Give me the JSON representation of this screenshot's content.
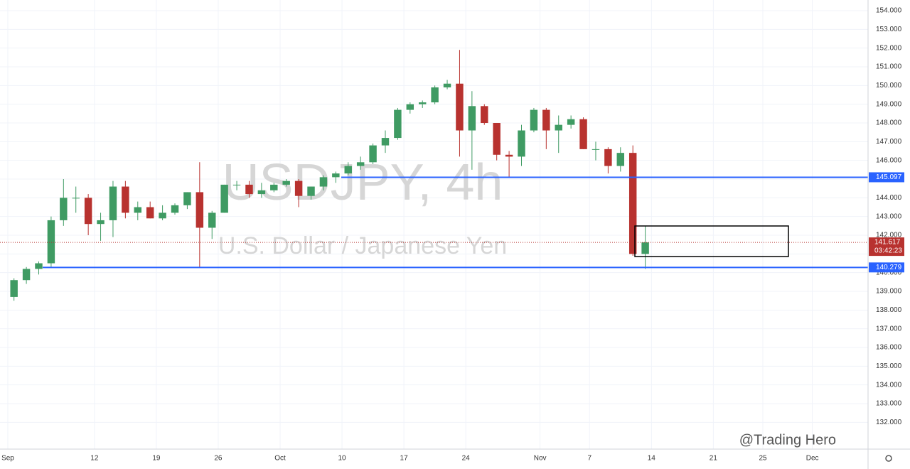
{
  "chart_data": {
    "type": "candlestick",
    "title": "USDJPY, 4h",
    "subtitle": "U.S. Dollar / Japanese Yen",
    "watermark": "@Trading Hero",
    "x": [
      0,
      1,
      2,
      3,
      4,
      5,
      6,
      7,
      8,
      9,
      10,
      11,
      12,
      13,
      14,
      15,
      16,
      17,
      18,
      19,
      20,
      21,
      22,
      23,
      24,
      25,
      26,
      27,
      28,
      29,
      30,
      31,
      32,
      33,
      34,
      35,
      36,
      37,
      38,
      39,
      40,
      41,
      42,
      43,
      44,
      45,
      46,
      47,
      48,
      49,
      50,
      51
    ],
    "open": [
      138.7,
      139.6,
      140.2,
      140.5,
      142.8,
      144.0,
      144.0,
      142.6,
      142.8,
      144.6,
      143.2,
      143.5,
      142.9,
      143.2,
      143.6,
      144.3,
      142.4,
      143.2,
      144.7,
      144.7,
      144.2,
      144.4,
      144.7,
      144.9,
      144.1,
      144.6,
      145.1,
      145.3,
      145.7,
      145.9,
      146.8,
      147.2,
      148.7,
      149.0,
      149.1,
      149.9,
      150.1,
      147.6,
      148.9,
      148.0,
      146.3,
      146.2,
      147.6,
      148.7,
      147.6,
      147.9,
      148.2,
      146.6,
      146.6,
      145.7,
      146.4,
      141.0
    ],
    "high": [
      139.7,
      140.3,
      140.6,
      143.0,
      145.0,
      144.6,
      144.2,
      143.2,
      144.9,
      144.9,
      143.8,
      143.8,
      143.6,
      143.7,
      144.3,
      145.9,
      143.3,
      144.7,
      144.9,
      144.9,
      144.8,
      144.8,
      145.0,
      145.0,
      144.6,
      145.2,
      145.4,
      145.9,
      146.2,
      146.9,
      147.6,
      148.8,
      149.1,
      149.2,
      150.0,
      150.3,
      151.9,
      149.7,
      149.0,
      148.0,
      146.5,
      147.9,
      148.8,
      148.8,
      148.4,
      148.4,
      148.3,
      147.0,
      146.7,
      146.7,
      146.8,
      142.5
    ],
    "low": [
      138.5,
      139.4,
      139.9,
      140.3,
      142.5,
      143.2,
      142.0,
      141.7,
      141.9,
      142.9,
      142.8,
      142.9,
      142.8,
      143.1,
      143.4,
      140.3,
      141.8,
      143.2,
      144.4,
      144.0,
      144.0,
      144.3,
      144.6,
      143.5,
      143.9,
      144.4,
      144.8,
      145.2,
      145.5,
      145.8,
      146.4,
      147.1,
      148.5,
      148.8,
      149.0,
      149.8,
      146.2,
      145.5,
      147.9,
      146.0,
      145.1,
      145.7,
      147.5,
      146.6,
      146.4,
      147.7,
      146.6,
      146.0,
      145.3,
      145.4,
      140.9,
      140.2
    ],
    "close": [
      139.6,
      140.2,
      140.5,
      142.8,
      144.0,
      144.0,
      142.6,
      142.8,
      144.6,
      143.2,
      143.5,
      142.9,
      143.2,
      143.6,
      144.3,
      142.4,
      143.2,
      144.7,
      144.7,
      144.2,
      144.4,
      144.7,
      144.9,
      144.1,
      144.6,
      145.1,
      145.3,
      145.7,
      145.9,
      146.8,
      147.2,
      148.7,
      149.0,
      149.1,
      149.9,
      150.1,
      147.6,
      148.9,
      148.0,
      146.3,
      146.2,
      147.6,
      148.7,
      147.6,
      147.9,
      148.2,
      146.6,
      146.6,
      145.7,
      146.4,
      141.0,
      141.617
    ],
    "up_color": "#3f9b63",
    "down_color": "#b8322f",
    "xlim": [
      -0.63,
      69.5
    ],
    "xticks": [
      {
        "value": 0,
        "label": "Sep"
      },
      {
        "value": 7,
        "label": "12"
      },
      {
        "value": 12,
        "label": "19"
      },
      {
        "value": 17,
        "label": "26"
      },
      {
        "value": 22,
        "label": "Oct"
      },
      {
        "value": 27,
        "label": "10"
      },
      {
        "value": 32,
        "label": "17"
      },
      {
        "value": 37,
        "label": "24"
      },
      {
        "value": 43,
        "label": "Nov"
      },
      {
        "value": 47,
        "label": "7"
      },
      {
        "value": 52,
        "label": "14"
      },
      {
        "value": 57,
        "label": "21"
      },
      {
        "value": 61,
        "label": "25"
      },
      {
        "value": 65,
        "label": "Dec"
      }
    ],
    "ylim": [
      130.57,
      154.57
    ],
    "yticks": [
      {
        "value": 132,
        "label": "132.000"
      },
      {
        "value": 133,
        "label": "133.000"
      },
      {
        "value": 134,
        "label": "134.000"
      },
      {
        "value": 135,
        "label": "135.000"
      },
      {
        "value": 136,
        "label": "136.000"
      },
      {
        "value": 137,
        "label": "137.000"
      },
      {
        "value": 138,
        "label": "138.000"
      },
      {
        "value": 139,
        "label": "139.000"
      },
      {
        "value": 140,
        "label": "140.000"
      },
      {
        "value": 141,
        "label": "141.000"
      },
      {
        "value": 142,
        "label": "142.000"
      },
      {
        "value": 143,
        "label": "143.000"
      },
      {
        "value": 144,
        "label": "144.000"
      },
      {
        "value": 145,
        "label": "145.000"
      },
      {
        "value": 146,
        "label": "146.000"
      },
      {
        "value": 147,
        "label": "147.000"
      },
      {
        "value": 148,
        "label": "148.000"
      },
      {
        "value": 149,
        "label": "149.000"
      },
      {
        "value": 150,
        "label": "150.000"
      },
      {
        "value": 151,
        "label": "151.000"
      },
      {
        "value": 152,
        "label": "152.000"
      },
      {
        "value": 153,
        "label": "153.000"
      },
      {
        "value": 154,
        "label": "154.000"
      }
    ],
    "levels": [
      145.097,
      140.279
    ],
    "level_color": "#2962ff",
    "last_price": 141.617,
    "countdown": "03:42:23",
    "grid": true
  }
}
